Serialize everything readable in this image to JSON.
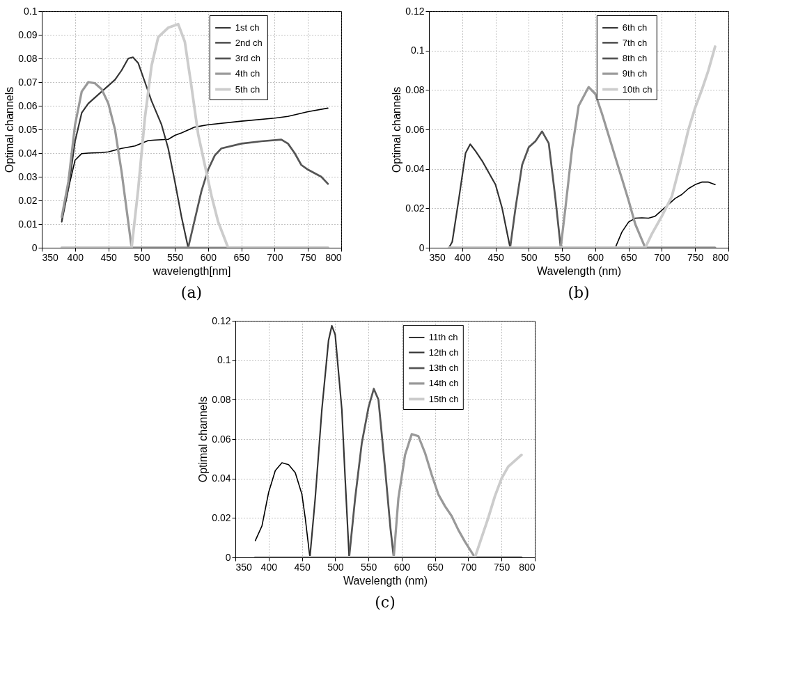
{
  "chart_data": [
    {
      "type": "line",
      "xlabel": "wavelength[nm]",
      "ylabel": "Optimal channels",
      "annotations": [
        "(a)"
      ],
      "xlim": [
        350,
        800
      ],
      "xticks": [
        350,
        400,
        450,
        500,
        550,
        600,
        650,
        700,
        750,
        800
      ],
      "ylim": [
        0,
        0.1
      ],
      "yticks": [
        0,
        0.01,
        0.02,
        0.03,
        0.04,
        0.05,
        0.06,
        0.07,
        0.08,
        0.09,
        0.1
      ],
      "grid": true,
      "legend": "top right",
      "line_style": "solid",
      "series": [
        {
          "name": "1st ch",
          "color": "#000000",
          "x": [
            380,
            390,
            400,
            410,
            420,
            440,
            450,
            470,
            490,
            510,
            520,
            540,
            550,
            560,
            580,
            600,
            650,
            700,
            720,
            750,
            780
          ],
          "values": [
            0.0115,
            0.025,
            0.037,
            0.0398,
            0.04,
            0.0402,
            0.0405,
            0.042,
            0.043,
            0.0453,
            0.0455,
            0.0458,
            0.0475,
            0.0485,
            0.051,
            0.052,
            0.0535,
            0.0548,
            0.0555,
            0.0575,
            0.059
          ]
        },
        {
          "name": "2nd ch",
          "color": "#333333",
          "x": [
            380,
            390,
            400,
            410,
            420,
            440,
            460,
            470,
            480,
            487,
            495,
            505,
            515,
            530,
            540,
            550,
            560,
            570,
            780
          ],
          "values": [
            0.011,
            0.025,
            0.045,
            0.057,
            0.061,
            0.066,
            0.071,
            0.075,
            0.08,
            0.0805,
            0.078,
            0.07,
            0.062,
            0.052,
            0.042,
            0.028,
            0.013,
            0,
            0
          ]
        },
        {
          "name": "3rd ch",
          "color": "#555555",
          "x": [
            380,
            570,
            580,
            590,
            600,
            610,
            620,
            650,
            680,
            710,
            720,
            730,
            740,
            750,
            770,
            780
          ],
          "values": [
            0,
            0,
            0.012,
            0.024,
            0.033,
            0.039,
            0.042,
            0.044,
            0.045,
            0.0457,
            0.044,
            0.04,
            0.035,
            0.033,
            0.03,
            0.027
          ]
        },
        {
          "name": "4th ch",
          "color": "#999999",
          "x": [
            380,
            390,
            400,
            410,
            420,
            430,
            440,
            450,
            460,
            470,
            478,
            485,
            780
          ],
          "values": [
            0.013,
            0.028,
            0.052,
            0.066,
            0.07,
            0.0695,
            0.067,
            0.061,
            0.05,
            0.032,
            0.015,
            0,
            0
          ]
        },
        {
          "name": "5th ch",
          "color": "#cccccc",
          "x": [
            380,
            485,
            495,
            505,
            515,
            525,
            540,
            555,
            565,
            575,
            585,
            595,
            605,
            615,
            630,
            780
          ],
          "values": [
            0,
            0,
            0.025,
            0.055,
            0.077,
            0.089,
            0.093,
            0.0945,
            0.087,
            0.068,
            0.048,
            0.035,
            0.022,
            0.011,
            0,
            0
          ]
        }
      ]
    },
    {
      "type": "line",
      "xlabel": "Wavelength (nm)",
      "ylabel": "Optimal channels",
      "annotations": [
        "(b)"
      ],
      "xlim": [
        350,
        800
      ],
      "xticks": [
        350,
        400,
        450,
        500,
        550,
        600,
        650,
        700,
        750,
        800
      ],
      "ylim": [
        0,
        0.12
      ],
      "yticks": [
        0,
        0.02,
        0.04,
        0.06,
        0.08,
        0.1,
        0.12
      ],
      "grid": true,
      "legend": "top right",
      "line_style": "solid",
      "series": [
        {
          "name": "6th ch",
          "color": "#000000",
          "x": [
            380,
            630,
            640,
            650,
            660,
            670,
            680,
            690,
            700,
            710,
            720,
            730,
            740,
            750,
            760,
            770,
            780
          ],
          "values": [
            0,
            0,
            0.008,
            0.013,
            0.015,
            0.0152,
            0.015,
            0.016,
            0.019,
            0.022,
            0.025,
            0.027,
            0.03,
            0.032,
            0.0333,
            0.0333,
            0.032
          ]
        },
        {
          "name": "7th ch",
          "color": "#333333",
          "x": [
            380,
            385,
            395,
            405,
            412,
            420,
            430,
            440,
            450,
            460,
            466,
            472,
            780
          ],
          "values": [
            0,
            0.003,
            0.025,
            0.048,
            0.0525,
            0.049,
            0.044,
            0.038,
            0.032,
            0.02,
            0.01,
            0,
            0
          ]
        },
        {
          "name": "8th ch",
          "color": "#555555",
          "x": [
            380,
            472,
            480,
            490,
            500,
            510,
            520,
            530,
            540,
            548,
            780
          ],
          "values": [
            0,
            0,
            0.02,
            0.042,
            0.051,
            0.054,
            0.059,
            0.053,
            0.025,
            0,
            0
          ]
        },
        {
          "name": "9th ch",
          "color": "#999999",
          "x": [
            380,
            548,
            555,
            565,
            575,
            590,
            600,
            610,
            620,
            630,
            640,
            650,
            660,
            670,
            675,
            780
          ],
          "values": [
            0,
            0,
            0.02,
            0.05,
            0.072,
            0.0815,
            0.078,
            0.068,
            0.057,
            0.046,
            0.035,
            0.024,
            0.012,
            0.004,
            0,
            0
          ]
        },
        {
          "name": "10th ch",
          "color": "#cccccc",
          "x": [
            380,
            675,
            685,
            700,
            715,
            725,
            740,
            750,
            760,
            770,
            780
          ],
          "values": [
            0,
            0,
            0.007,
            0.016,
            0.026,
            0.039,
            0.06,
            0.071,
            0.08,
            0.09,
            0.102
          ]
        }
      ]
    },
    {
      "type": "line",
      "xlabel": "Wavelength (nm)",
      "ylabel": "Optimal channels",
      "annotations": [
        "(c)"
      ],
      "xlim": [
        350,
        800
      ],
      "xticks": [
        350,
        400,
        450,
        500,
        550,
        600,
        650,
        700,
        750,
        800
      ],
      "ylim": [
        0,
        0.12
      ],
      "yticks": [
        0,
        0.02,
        0.04,
        0.06,
        0.08,
        0.1,
        0.12
      ],
      "grid": true,
      "legend": "top right",
      "line_style": "solid",
      "series": [
        {
          "name": "11th ch",
          "color": "#000000",
          "x": [
            380,
            390,
            400,
            410,
            420,
            430,
            440,
            450,
            455,
            462,
            780
          ],
          "values": [
            0.0085,
            0.016,
            0.033,
            0.044,
            0.048,
            0.047,
            0.043,
            0.032,
            0.02,
            0,
            0
          ]
        },
        {
          "name": "12th ch",
          "color": "#333333",
          "x": [
            380,
            462,
            470,
            480,
            490,
            495,
            500,
            510,
            515,
            521,
            780
          ],
          "values": [
            0,
            0,
            0.03,
            0.075,
            0.11,
            0.1175,
            0.113,
            0.075,
            0.04,
            0,
            0
          ]
        },
        {
          "name": "13th ch",
          "color": "#555555",
          "x": [
            380,
            521,
            530,
            540,
            550,
            558,
            565,
            575,
            583,
            588,
            780
          ],
          "values": [
            0,
            0,
            0.03,
            0.058,
            0.076,
            0.0855,
            0.08,
            0.045,
            0.015,
            0,
            0
          ]
        },
        {
          "name": "14th ch",
          "color": "#999999",
          "x": [
            380,
            588,
            595,
            605,
            615,
            625,
            635,
            645,
            655,
            665,
            675,
            685,
            695,
            710,
            780
          ],
          "values": [
            0,
            0,
            0.03,
            0.052,
            0.0625,
            0.0615,
            0.053,
            0.042,
            0.032,
            0.026,
            0.021,
            0.014,
            0.008,
            0,
            0
          ]
        },
        {
          "name": "15th ch",
          "color": "#cccccc",
          "x": [
            380,
            710,
            720,
            730,
            740,
            750,
            760,
            770,
            780
          ],
          "values": [
            0,
            0,
            0.01,
            0.02,
            0.031,
            0.04,
            0.046,
            0.049,
            0.052
          ]
        }
      ]
    }
  ]
}
